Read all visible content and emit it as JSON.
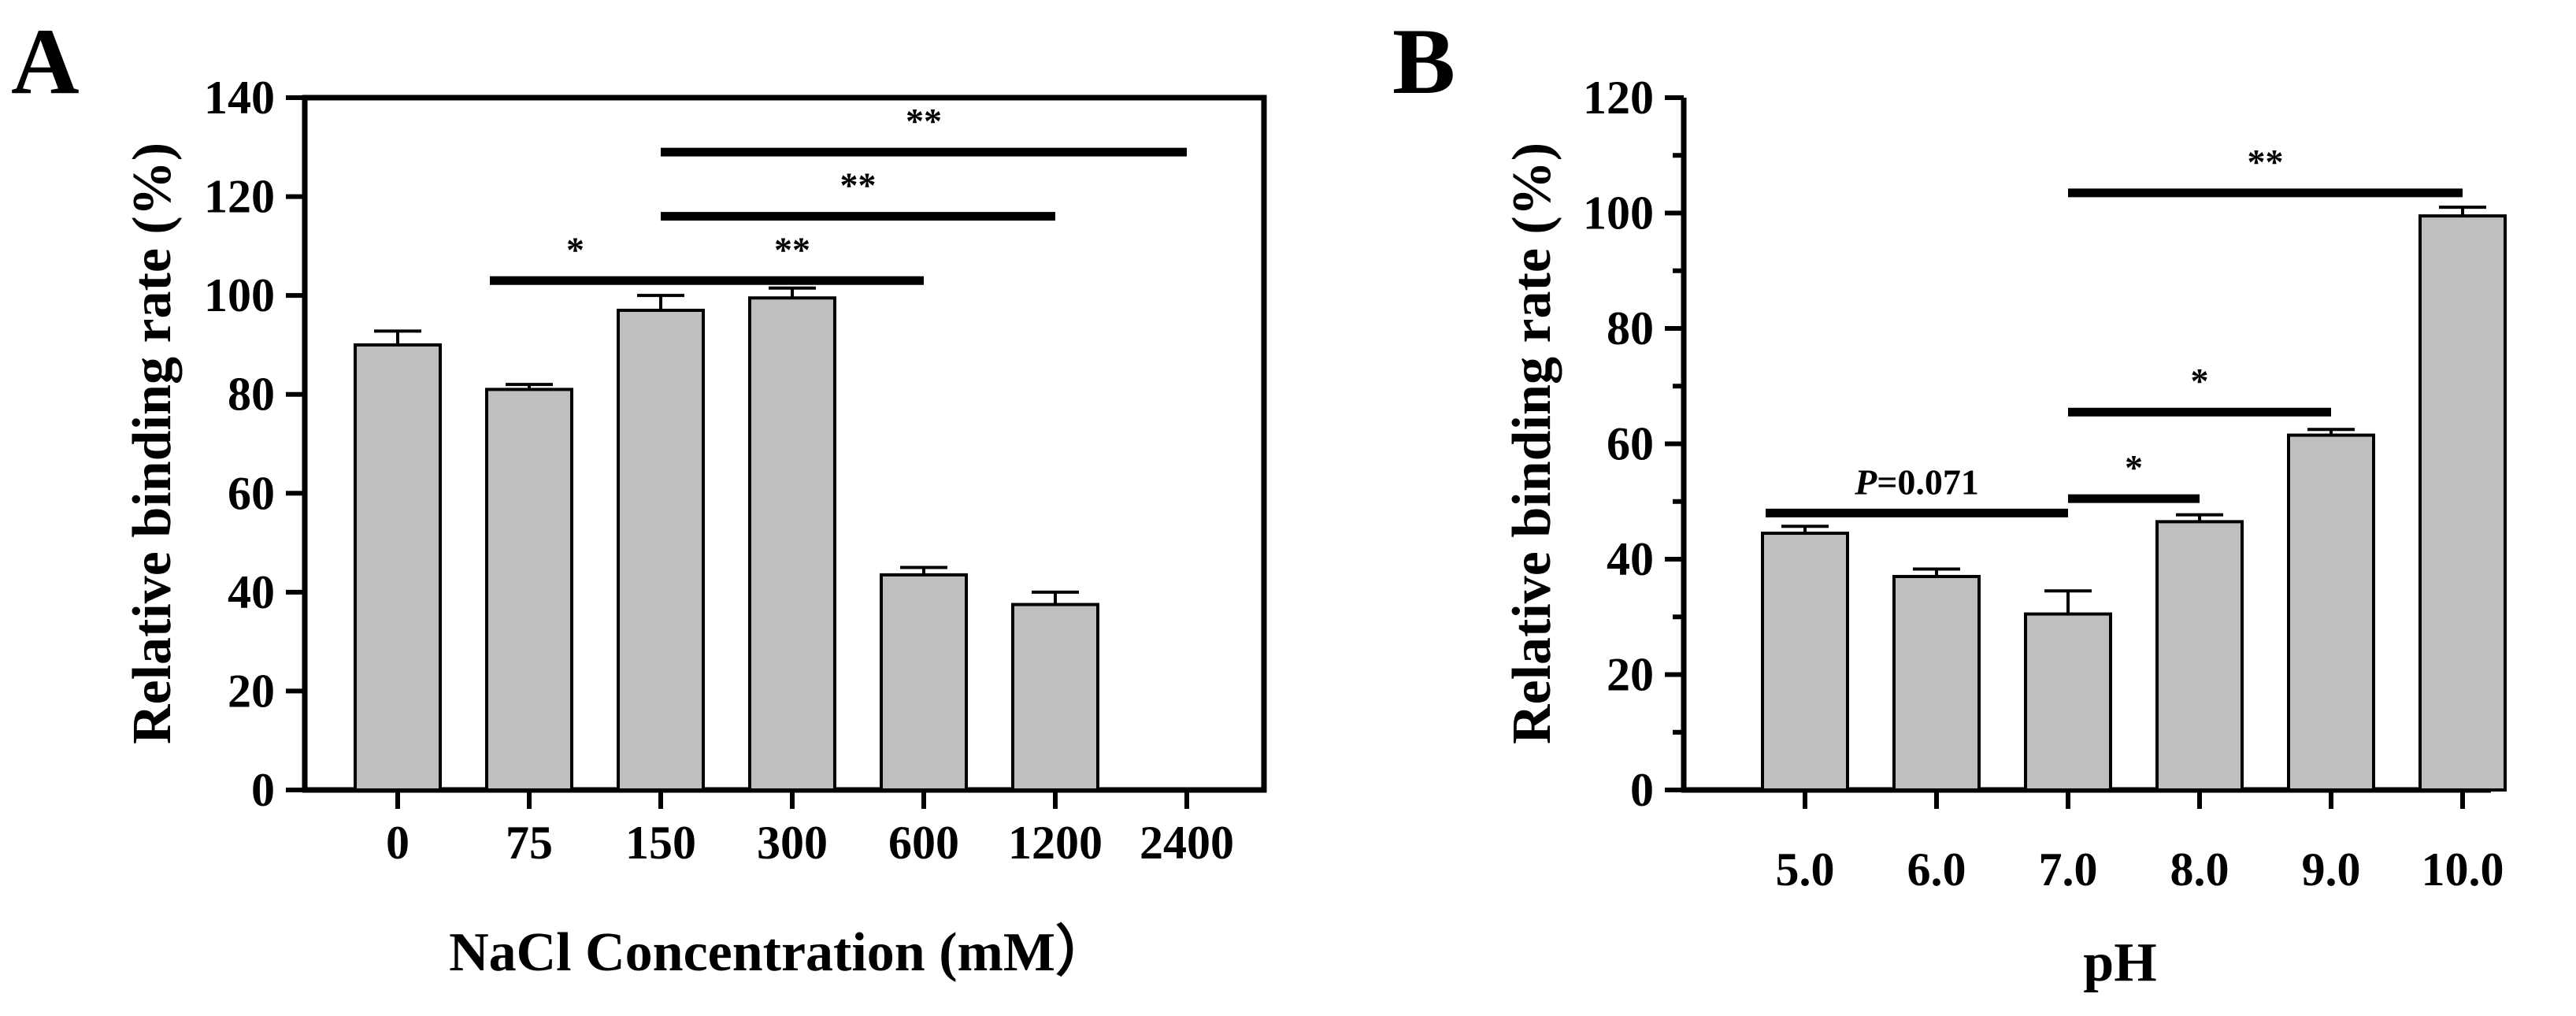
{
  "chart_data": [
    {
      "panel": "A",
      "type": "bar",
      "title": "",
      "xlabel": "NaCl Concentration (mM）",
      "ylabel": "Relative binding rate (%)",
      "ylim": [
        0,
        140
      ],
      "yticks": [
        0,
        20,
        40,
        60,
        80,
        100,
        120,
        140
      ],
      "categories": [
        "0",
        "75",
        "150",
        "300",
        "600",
        "1200",
        "2400"
      ],
      "series": [
        {
          "name": "Relative binding rate",
          "values": [
            90,
            81,
            97,
            99.5,
            43.5,
            37.5,
            null
          ],
          "errors": [
            2.8,
            1,
            3,
            2,
            1.5,
            2.5,
            null
          ]
        }
      ],
      "grid": false,
      "significance": [
        {
          "from": "75",
          "to": "150",
          "label": "*",
          "y": 103
        },
        {
          "from": "150",
          "to": "600",
          "label": "**",
          "y": 103
        },
        {
          "from": "150",
          "to": "1200",
          "label": "**",
          "y": 116
        },
        {
          "from": "150",
          "to": "2400",
          "label": "**",
          "y": 129
        }
      ]
    },
    {
      "panel": "B",
      "type": "bar",
      "title": "",
      "xlabel": "pH",
      "ylabel": "Relative binding rate (%)",
      "ylim": [
        0,
        120
      ],
      "yticks": [
        0,
        20,
        40,
        60,
        80,
        100,
        120
      ],
      "categories": [
        "5.0",
        "6.0",
        "7.0",
        "8.0",
        "9.0",
        "10.0"
      ],
      "series": [
        {
          "name": "Relative binding rate",
          "values": [
            44.5,
            37,
            30.5,
            46.5,
            61.5,
            99.5
          ],
          "errors": [
            1.2,
            1.3,
            4,
            1.2,
            1,
            1.5
          ]
        }
      ],
      "grid": false,
      "significance": [
        {
          "from": "5.0",
          "to": "7.0",
          "label": "P=0.071",
          "italic_prefix": "P",
          "rest": "=0.071",
          "y": 48
        },
        {
          "from": "7.0",
          "to": "8.0",
          "label": "*",
          "y": 50.5
        },
        {
          "from": "7.0",
          "to": "9.0",
          "label": "*",
          "y": 65.5
        },
        {
          "from": "7.0",
          "to": "10.0",
          "label": "**",
          "y": 103.5
        }
      ]
    }
  ]
}
